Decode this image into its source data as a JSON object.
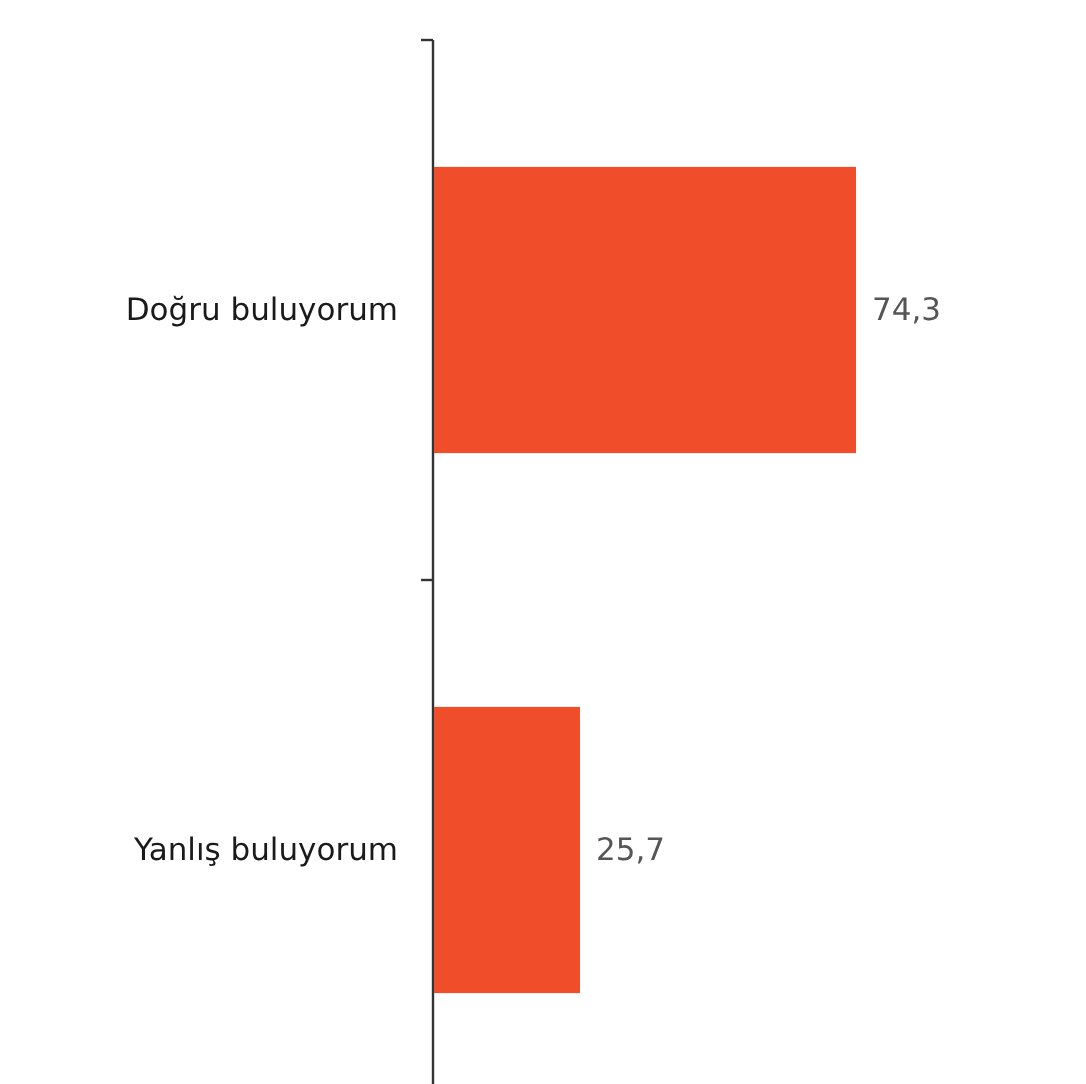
{
  "chart_data": {
    "type": "bar",
    "orientation": "horizontal",
    "categories": [
      "Doğru buluyorum",
      "Yanlış buluyorum"
    ],
    "values": [
      74.3,
      25.7
    ],
    "value_labels": [
      "74,3",
      "25,7"
    ],
    "color": "#f04e2b"
  }
}
